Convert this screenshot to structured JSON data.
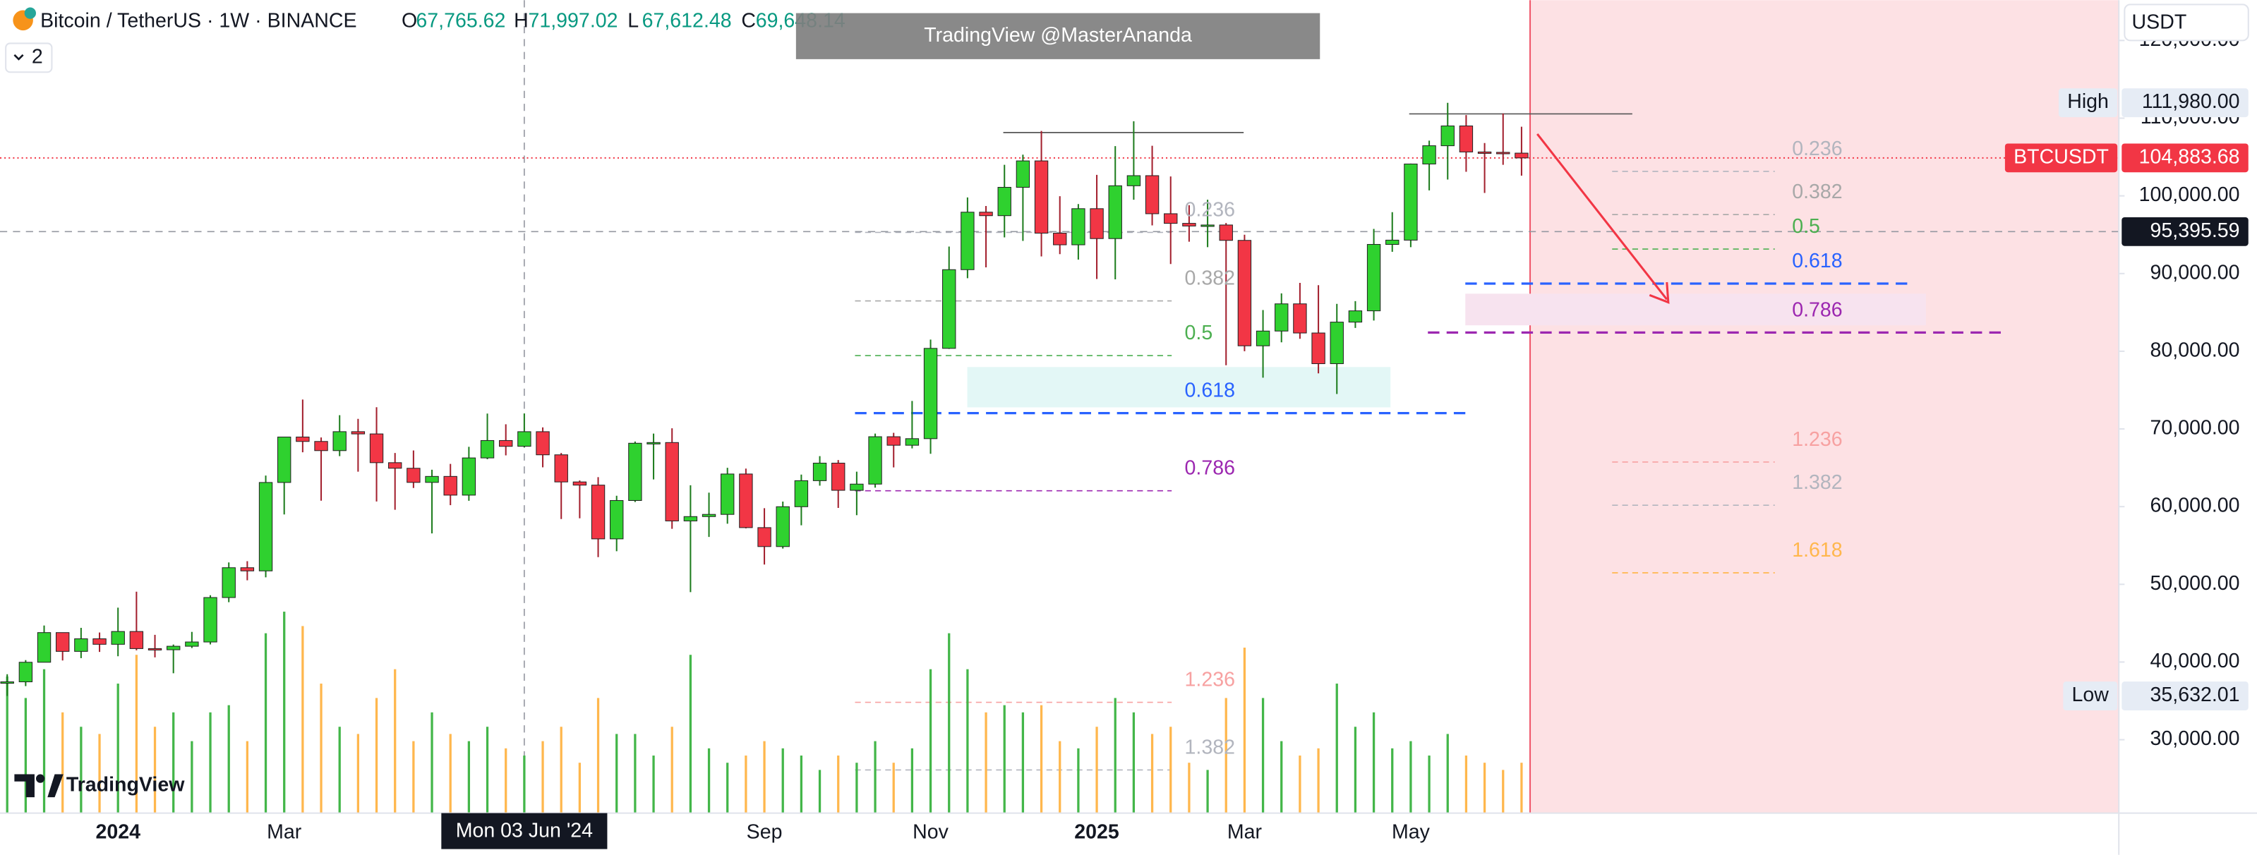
{
  "ui": {
    "symbol": "Bitcoin / TetherUS · 1W · BINANCE",
    "ohlc": [
      {
        "label": "O",
        "text": "67,765.62"
      },
      {
        "label": "H",
        "text": "71,997.02"
      },
      {
        "label": "L",
        "text": "67,612.48"
      },
      {
        "label": "C",
        "text": "69,648.14"
      }
    ],
    "indicators_count": "2",
    "watermark": "TradingView @MasterAnanda",
    "logo": "TradingView",
    "currency": "USDT"
  },
  "chart_data": {
    "type": "candlestick",
    "categories": [
      null,
      null,
      null,
      null,
      null,
      null,
      "2024",
      null,
      null,
      null,
      null,
      null,
      null,
      null,
      null,
      "Mar",
      null,
      null,
      null,
      null,
      null,
      null,
      null,
      null,
      null,
      null,
      null,
      null,
      "Mon 03 Jun '24",
      null,
      null,
      null,
      null,
      null,
      null,
      null,
      null,
      null,
      null,
      null,
      null,
      "Sep",
      null,
      null,
      null,
      null,
      null,
      null,
      null,
      null,
      "Nov",
      null,
      null,
      null,
      null,
      null,
      null,
      null,
      null,
      "2025",
      null,
      null,
      null,
      null,
      null,
      null,
      null,
      "Mar",
      null,
      null,
      null,
      null,
      null,
      null,
      null,
      null,
      "May",
      null,
      null,
      null,
      null,
      null,
      null
    ],
    "candles": [
      [
        37300,
        38430,
        35632.01,
        37450
      ],
      [
        37450,
        40250,
        36900,
        39970
      ],
      [
        39970,
        44700,
        39970,
        43790
      ],
      [
        43790,
        43800,
        40200,
        41370
      ],
      [
        41370,
        44400,
        40500,
        42990
      ],
      [
        42990,
        43800,
        41300,
        42280
      ],
      [
        42280,
        47000,
        40750,
        43930
      ],
      [
        43930,
        49050,
        41500,
        41730
      ],
      [
        41730,
        43500,
        40600,
        41580
      ],
      [
        41580,
        42250,
        38555,
        42030
      ],
      [
        42030,
        43880,
        41800,
        42580
      ],
      [
        42580,
        48600,
        42260,
        48300
      ],
      [
        48300,
        52820,
        47700,
        52140
      ],
      [
        52140,
        52980,
        50520,
        51730
      ],
      [
        51730,
        64000,
        50900,
        63110
      ],
      [
        63110,
        69000,
        59000,
        68960
      ],
      [
        68960,
        73780,
        67000,
        68390
      ],
      [
        68390,
        68900,
        60760,
        67210
      ],
      [
        67210,
        71770,
        66500,
        69650
      ],
      [
        69650,
        71300,
        64500,
        69360
      ],
      [
        69360,
        72800,
        60660,
        65660
      ],
      [
        65660,
        66900,
        59600,
        64940
      ],
      [
        64940,
        67230,
        62400,
        63120
      ],
      [
        63120,
        64750,
        56550,
        63890
      ],
      [
        63890,
        65500,
        60190,
        61480
      ],
      [
        61480,
        67700,
        60750,
        66270
      ],
      [
        66270,
        71980,
        66100,
        68510
      ],
      [
        68510,
        70600,
        66600,
        67760
      ],
      [
        67765.62,
        71997.02,
        67612.48,
        69648.14
      ],
      [
        69648,
        70200,
        65060,
        66670
      ],
      [
        66670,
        66900,
        58400,
        63180
      ],
      [
        63180,
        63370,
        58500,
        62770
      ],
      [
        62770,
        63800,
        53500,
        55850
      ],
      [
        55850,
        61400,
        54260,
        60790
      ],
      [
        60790,
        68380,
        60600,
        68160
      ],
      [
        68160,
        69400,
        63500,
        68250
      ],
      [
        68250,
        70080,
        57150,
        58160
      ],
      [
        58160,
        62750,
        49000,
        58720
      ],
      [
        58720,
        61800,
        56100,
        59000
      ],
      [
        59000,
        65000,
        57800,
        64200
      ],
      [
        64200,
        64900,
        57200,
        57300
      ],
      [
        57300,
        59800,
        52550,
        54860
      ],
      [
        54860,
        60650,
        54600,
        59990
      ],
      [
        59990,
        64130,
        57600,
        63340
      ],
      [
        63340,
        66500,
        62700,
        65600
      ],
      [
        65600,
        66000,
        59830,
        62100
      ],
      [
        62100,
        64500,
        58900,
        62900
      ],
      [
        62900,
        69400,
        62450,
        69000
      ],
      [
        69000,
        69500,
        65050,
        67900
      ],
      [
        67900,
        73600,
        67500,
        68750
      ],
      [
        68750,
        81500,
        66800,
        80370
      ],
      [
        80370,
        93480,
        80300,
        90500
      ],
      [
        90500,
        99800,
        89400,
        97900
      ],
      [
        97900,
        98700,
        90800,
        97450
      ],
      [
        97450,
        104000,
        94650,
        101100
      ],
      [
        101100,
        105300,
        94200,
        104500
      ],
      [
        104500,
        108350,
        92200,
        95200
      ],
      [
        95200,
        99950,
        92500,
        93700
      ],
      [
        93700,
        98950,
        91800,
        98350
      ],
      [
        98350,
        102700,
        89300,
        94500
      ],
      [
        94500,
        106400,
        89250,
        101300
      ],
      [
        101300,
        109600,
        99500,
        102600
      ],
      [
        102600,
        106450,
        96200,
        97700
      ],
      [
        97700,
        102500,
        91230,
        96460
      ],
      [
        96460,
        98800,
        94100,
        96120
      ],
      [
        96120,
        99500,
        93400,
        96250
      ],
      [
        96250,
        96500,
        78200,
        94270
      ],
      [
        94270,
        95000,
        80000,
        80700
      ],
      [
        80700,
        85300,
        76600,
        82600
      ],
      [
        82600,
        87450,
        81150,
        86100
      ],
      [
        86100,
        88800,
        81600,
        82350
      ],
      [
        82350,
        88500,
        77150,
        78400
      ],
      [
        78400,
        86100,
        74500,
        83750
      ],
      [
        83750,
        86450,
        83000,
        85200
      ],
      [
        85200,
        95750,
        83950,
        93750
      ],
      [
        93750,
        97900,
        92800,
        94300
      ],
      [
        94300,
        104150,
        93400,
        104100
      ],
      [
        104100,
        107100,
        100700,
        106450
      ],
      [
        106450,
        111980,
        102100,
        109000
      ],
      [
        109000,
        110400,
        103100,
        105650
      ],
      [
        105650,
        106800,
        100370,
        105600
      ],
      [
        105600,
        110600,
        104000,
        105500
      ],
      [
        105500,
        108900,
        102600,
        104883.68
      ]
    ],
    "volume": [
      95,
      80,
      100,
      70,
      60,
      55,
      90,
      110,
      60,
      70,
      50,
      70,
      75,
      50,
      125,
      140,
      130,
      90,
      60,
      55,
      80,
      100,
      50,
      70,
      55,
      50,
      60,
      45,
      40,
      50,
      60,
      35,
      80,
      55,
      55,
      40,
      60,
      110,
      45,
      35,
      40,
      50,
      45,
      40,
      30,
      40,
      35,
      50,
      35,
      45,
      100,
      125,
      100,
      70,
      75,
      70,
      75,
      50,
      45,
      60,
      80,
      70,
      55,
      60,
      35,
      30,
      80,
      115,
      80,
      50,
      40,
      45,
      90,
      60,
      70,
      45,
      50,
      40,
      55,
      40,
      35,
      30,
      35
    ],
    "ylim": [
      20556,
      125185
    ],
    "yticks": [
      {
        "value": 30000,
        "label": "30,000.00"
      },
      {
        "value": 40000,
        "label": "40,000.00"
      },
      {
        "value": 50000,
        "label": "50,000.00"
      },
      {
        "value": 60000,
        "label": "60,000.00"
      },
      {
        "value": 70000,
        "label": "70,000.00"
      },
      {
        "value": 80000,
        "label": "80,000.00"
      },
      {
        "value": 90000,
        "label": "90,000.00"
      },
      {
        "value": 100000,
        "label": "100,000.00"
      },
      {
        "value": 110000,
        "label": "110,000.00"
      },
      {
        "value": 120000,
        "label": "120,000.00"
      }
    ],
    "up_color": "#2fd12f",
    "down_color": "#f23645",
    "volume_up_color": "#43b649",
    "volume_down_color": "#ffb74d",
    "price_lines": [
      {
        "label": "High",
        "value": 111980,
        "text": "111,980.00",
        "color": "#e6ecf5"
      },
      {
        "label": "BTCUSDT",
        "value": 104883.68,
        "text": "104,883.68",
        "color": "#f23645"
      },
      {
        "value": 95395.59,
        "text": "95,395.59",
        "color": "#131722"
      },
      {
        "label": "Low",
        "value": 35632.01,
        "text": "35,632.01",
        "color": "#e6ecf5"
      }
    ],
    "fib_sets": [
      {
        "levels": [
          {
            "name": "0.236",
            "price": 95300,
            "color": "#b2b5be"
          },
          {
            "name": "0.382",
            "price": 86481,
            "color": "#a8a8a8"
          },
          {
            "name": "0.5",
            "price": 79444,
            "color": "#4caf50"
          },
          {
            "name": "0.618",
            "price": 72037,
            "color": "#2962ff"
          },
          {
            "name": "0.786",
            "price": 62037,
            "color": "#9c27b0"
          },
          {
            "name": "1.236",
            "price": 34815,
            "color": "#f7a1a1"
          },
          {
            "name": "1.382",
            "price": 26111,
            "color": "#b2b5be"
          }
        ]
      },
      {
        "levels": [
          {
            "name": "0.236",
            "price": 103148,
            "color": "#b2b5be"
          },
          {
            "name": "0.382",
            "price": 97593,
            "color": "#a8a8a8"
          },
          {
            "name": "0.5",
            "price": 93148,
            "color": "#4caf50"
          },
          {
            "name": "0.618",
            "price": 88704,
            "color": "#2962ff"
          },
          {
            "name": "0.786",
            "price": 82407,
            "color": "#9c27b0"
          },
          {
            "name": "1.236",
            "price": 65741,
            "color": "#f7a1a1"
          },
          {
            "name": "1.382",
            "price": 60185,
            "color": "#b2b5be"
          },
          {
            "name": "1.618",
            "price": 51481,
            "color": "#ffb74d"
          }
        ]
      }
    ],
    "zones": [
      {
        "top": 77963,
        "bottom": 72778,
        "color": "#e3f7f6"
      },
      {
        "top": 87407,
        "bottom": 83333,
        "color": "#f7e3ef"
      }
    ],
    "resistance_lines": [
      108150,
      110555
    ]
  }
}
